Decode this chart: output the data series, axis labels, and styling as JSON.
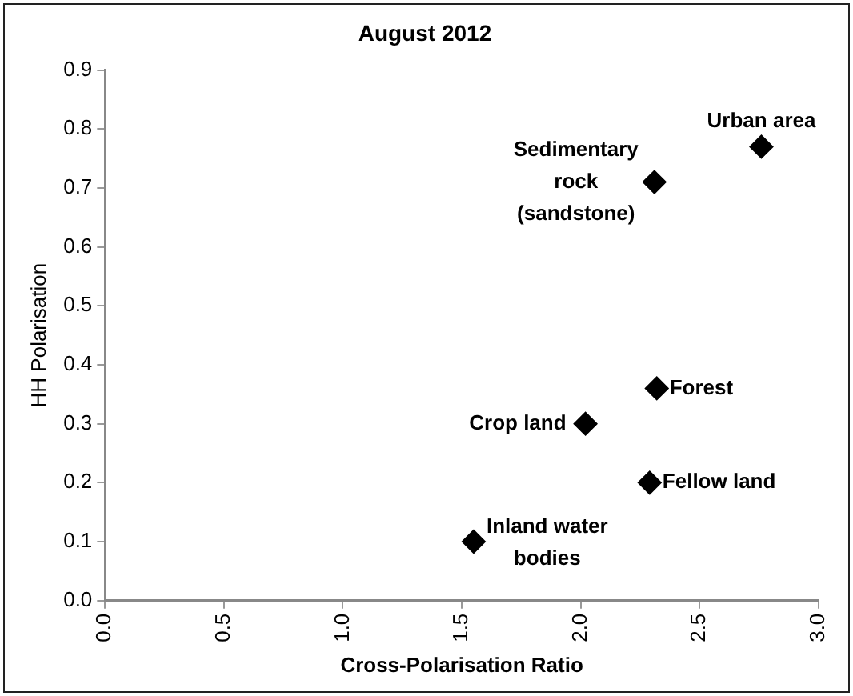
{
  "chart_data": {
    "type": "scatter",
    "title": "August 2012",
    "xlabel": "Cross-Polarisation Ratio",
    "ylabel": "HH Polarisation",
    "xlim": [
      0,
      3
    ],
    "xticks": [
      {
        "value": 0,
        "label": "0.0"
      },
      {
        "value": 0.5,
        "label": "0.5"
      },
      {
        "value": 1,
        "label": "1.0"
      },
      {
        "value": 1.5,
        "label": "1.5"
      },
      {
        "value": 2,
        "label": "2.0"
      },
      {
        "value": 2.5,
        "label": "2.5"
      },
      {
        "value": 3,
        "label": "3.0"
      }
    ],
    "ylim": [
      0,
      0.9
    ],
    "yticks": [
      {
        "value": 0,
        "label": "0.0"
      },
      {
        "value": 0.1,
        "label": "0.1"
      },
      {
        "value": 0.2,
        "label": "0.2"
      },
      {
        "value": 0.3,
        "label": "0.3"
      },
      {
        "value": 0.4,
        "label": "0.4"
      },
      {
        "value": 0.5,
        "label": "0.5"
      },
      {
        "value": 0.6,
        "label": "0.6"
      },
      {
        "value": 0.7,
        "label": "0.7"
      },
      {
        "value": 0.8,
        "label": "0.8"
      },
      {
        "value": 0.9,
        "label": "0.9"
      }
    ],
    "x": [
      2.76,
      2.31,
      2.32,
      2.02,
      2.29,
      1.55
    ],
    "values": [
      0.77,
      0.71,
      0.36,
      0.3,
      0.2,
      0.1
    ],
    "color": "#000000",
    "marker": "diamond",
    "grid": false,
    "legend": false,
    "annotations": [
      {
        "text": "Urban area",
        "x": 2.76,
        "y": 0.77
      },
      {
        "text": "Sedimentary rock (sandstone)",
        "x": 2.31,
        "y": 0.71
      },
      {
        "text": "Forest",
        "x": 2.32,
        "y": 0.36
      },
      {
        "text": "Crop land",
        "x": 2.02,
        "y": 0.3
      },
      {
        "text": "Fellow land",
        "x": 2.29,
        "y": 0.2
      },
      {
        "text": "Inland water bodies",
        "x": 1.55,
        "y": 0.1
      }
    ]
  }
}
